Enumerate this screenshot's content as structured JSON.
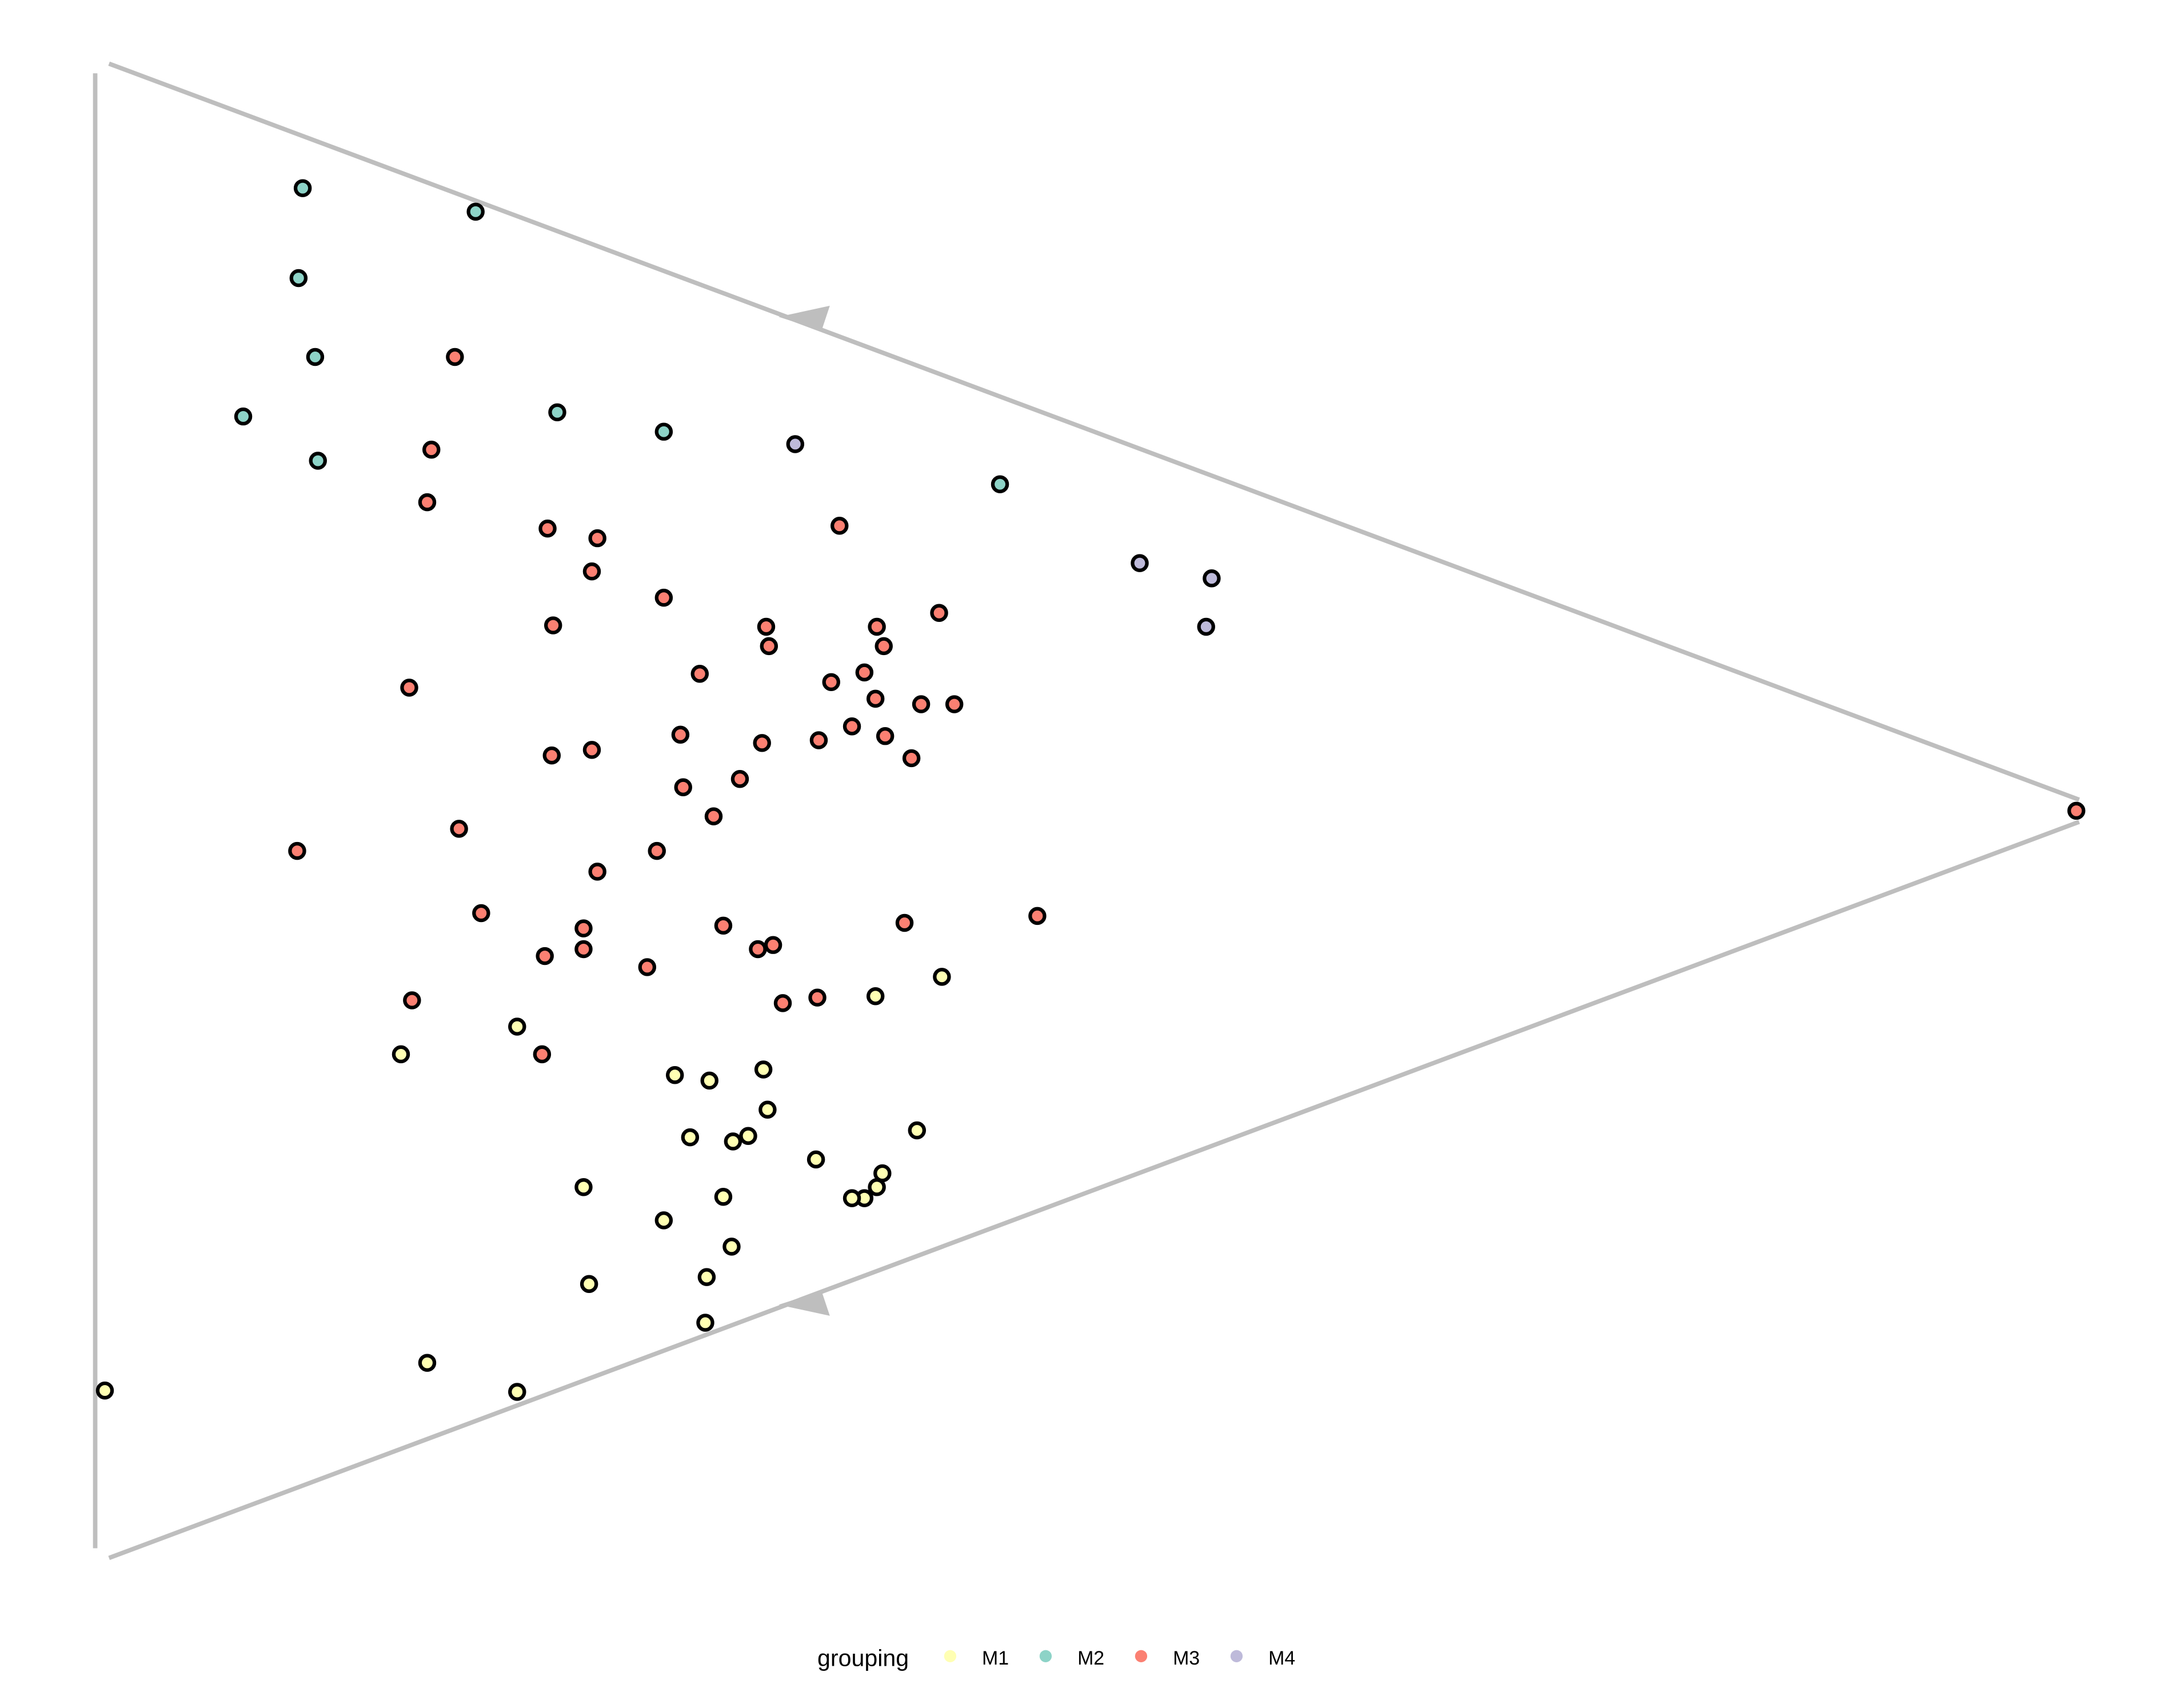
{
  "chart_data": {
    "type": "scatter",
    "title": "",
    "xlabel": "",
    "ylabel": "",
    "xlim": [
      0,
      1569
    ],
    "ylim": [
      0,
      1220
    ],
    "grid": false,
    "legend": {
      "title": "grouping",
      "placement": "bottom",
      "entries": [
        "M1",
        "M2",
        "M3",
        "M4"
      ]
    },
    "colors": {
      "M1": "#FFFFB3",
      "M2": "#8DD3C7",
      "M3": "#FB8072",
      "M4": "#BEBADA",
      "frame": "#BEBEBE"
    },
    "series": [
      {
        "name": "M1",
        "x": [
          628,
          676,
          369,
          285,
          483,
          508,
          547,
          550,
          658,
          494,
          525,
          536,
          585,
          417,
          518,
          633,
          629,
          620,
          611,
          475,
          524,
          506,
          421,
          505,
          304,
          71,
          369
        ],
        "y": [
          720,
          706,
          742,
          762,
          777,
          781,
          773,
          802,
          817,
          822,
          825,
          821,
          838,
          858,
          865,
          848,
          858,
          866,
          866,
          882,
          901,
          923,
          928,
          956,
          985,
          1005,
          1006
        ]
      },
      {
        "name": "M2",
        "x": [
          214,
          339,
          211,
          223,
          171,
          398,
          225,
          475,
          718
        ],
        "y": [
          136,
          153,
          201,
          258,
          301,
          298,
          333,
          312,
          350
        ]
      },
      {
        "name": "M3",
        "x": [
          324,
          307,
          304,
          391,
          427,
          423,
          602,
          475,
          395,
          549,
          629,
          674,
          551,
          634,
          501,
          620,
          596,
          291,
          628,
          661,
          685,
          611,
          587,
          635,
          487,
          546,
          394,
          423,
          654,
          489,
          530,
          511,
          327,
          210,
          470,
          427,
          343,
          417,
          518,
          649,
          745,
          417,
          543,
          554,
          389,
          463,
          293,
          586,
          561,
          387,
          1496
        ],
        "y": [
          258,
          325,
          363,
          382,
          389,
          413,
          380,
          432,
          452,
          453,
          453,
          443,
          467,
          467,
          487,
          486,
          493,
          497,
          505,
          509,
          509,
          525,
          535,
          532,
          531,
          537,
          546,
          542,
          548,
          569,
          563,
          590,
          599,
          615,
          615,
          630,
          660,
          671,
          669,
          667,
          662,
          686,
          686,
          683,
          691,
          699,
          723,
          721,
          725,
          762,
          586
        ]
      },
      {
        "name": "M4",
        "x": [
          570,
          819,
          871,
          867
        ],
        "y": [
          321,
          407,
          418,
          453
        ]
      }
    ]
  }
}
